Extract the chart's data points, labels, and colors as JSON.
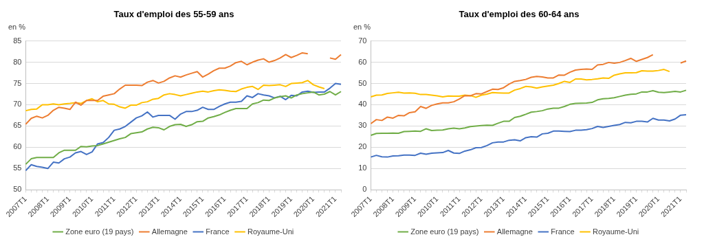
{
  "chart_data": [
    {
      "type": "line",
      "title": "Taux d'emploi des 55-59 ans",
      "ylabel": "en %",
      "categories": [
        "2007T1",
        null,
        null,
        null,
        "2008T1",
        null,
        null,
        null,
        "2009T1",
        null,
        null,
        null,
        "2010T1",
        null,
        null,
        null,
        "2011T1",
        null,
        null,
        null,
        "2012T1",
        null,
        null,
        null,
        "2013T1",
        null,
        null,
        null,
        "2014T1",
        null,
        null,
        null,
        "2015T1",
        null,
        null,
        null,
        "2016T1",
        null,
        null,
        null,
        "2017T1",
        null,
        null,
        null,
        "2018T1",
        null,
        null,
        null,
        "2019T1",
        null,
        null,
        null,
        "2020T1",
        null,
        null,
        null,
        "2021T1",
        null
      ],
      "series": [
        {
          "name": "Zone euro (19 pays)",
          "color": "#70ad47",
          "values": [
            56.0,
            57.3,
            57.6,
            57.6,
            57.6,
            57.6,
            58.7,
            59.3,
            59.3,
            59.3,
            60.2,
            60.1,
            60.3,
            60.4,
            60.8,
            61.2,
            61.6,
            62.0,
            62.3,
            63.2,
            63.4,
            63.6,
            64.3,
            64.7,
            64.6,
            64.1,
            64.9,
            65.3,
            65.4,
            64.9,
            65.3,
            66.0,
            66.1,
            66.9,
            67.2,
            67.6,
            68.2,
            68.7,
            69.1,
            69.1,
            69.1,
            70.2,
            70.5,
            71.1,
            71.0,
            71.6,
            71.9,
            72.1,
            71.6,
            72.3,
            72.6,
            72.8,
            73.0,
            72.3,
            72.5,
            73.1,
            72.3,
            73.1
          ]
        },
        {
          "name": "Allemagne",
          "color": "#ed7d31",
          "values": [
            65.4,
            66.8,
            67.3,
            66.9,
            67.5,
            68.7,
            69.4,
            69.2,
            68.9,
            70.6,
            69.9,
            71.0,
            71.0,
            71.0,
            72.0,
            72.3,
            72.6,
            73.7,
            74.6,
            74.6,
            74.6,
            74.5,
            75.3,
            75.7,
            75.1,
            75.5,
            76.3,
            76.8,
            76.5,
            77.0,
            77.4,
            77.8,
            76.5,
            77.2,
            78.0,
            78.6,
            78.6,
            79.1,
            79.9,
            80.2,
            79.4,
            80.0,
            80.5,
            80.8,
            80.0,
            80.4,
            81.0,
            81.8,
            81.1,
            81.6,
            82.2,
            82.0,
            null,
            null,
            null,
            81.0,
            80.7,
            81.8
          ]
        },
        {
          "name": "France",
          "color": "#4472c4",
          "values": [
            54.5,
            55.9,
            55.5,
            55.3,
            55.0,
            56.5,
            56.3,
            57.3,
            57.7,
            58.7,
            59.0,
            58.3,
            58.9,
            60.8,
            61.1,
            62.3,
            64.0,
            64.3,
            64.9,
            65.9,
            66.9,
            67.4,
            68.3,
            67.1,
            67.5,
            67.5,
            67.5,
            66.6,
            67.8,
            68.4,
            68.4,
            68.7,
            69.4,
            68.9,
            68.9,
            69.6,
            70.2,
            70.6,
            70.6,
            70.8,
            72.1,
            71.7,
            72.6,
            72.3,
            72.1,
            71.6,
            72.0,
            71.2,
            72.2,
            72.1,
            73.0,
            73.2,
            72.9,
            73.0,
            73.0,
            73.9,
            75.0,
            74.8
          ]
        },
        {
          "name": "Royaume-Uni",
          "color": "#ffc000",
          "values": [
            68.6,
            68.9,
            69.0,
            70.0,
            70.0,
            70.2,
            70.0,
            70.2,
            70.3,
            70.5,
            70.3,
            71.0,
            71.4,
            70.7,
            71.0,
            70.2,
            70.1,
            69.5,
            69.2,
            69.9,
            69.9,
            70.5,
            70.7,
            71.3,
            71.5,
            72.3,
            72.6,
            72.4,
            72.1,
            72.4,
            72.7,
            73.0,
            73.2,
            73.0,
            73.3,
            73.5,
            73.4,
            73.2,
            73.1,
            73.7,
            74.1,
            74.3,
            73.6,
            74.6,
            74.5,
            74.6,
            74.7,
            74.3,
            75.0,
            75.1,
            75.2,
            75.7,
            74.7,
            74.2,
            73.8,
            null,
            null,
            null
          ]
        }
      ],
      "ylim": [
        50,
        85
      ],
      "yticks": [
        50,
        55,
        60,
        65,
        70,
        75,
        80,
        85
      ],
      "grid": "y",
      "legend": "bottom",
      "marker": "none",
      "line_style": "solid"
    },
    {
      "type": "line",
      "title": "Taux d'emploi des 60-64 ans",
      "ylabel": "en %",
      "categories": [
        "2007T1",
        null,
        null,
        null,
        "2008T1",
        null,
        null,
        null,
        "2009T1",
        null,
        null,
        null,
        "2010T1",
        null,
        null,
        null,
        "2011T1",
        null,
        null,
        null,
        "2012T1",
        null,
        null,
        null,
        "2013T1",
        null,
        null,
        null,
        "2014T1",
        null,
        null,
        null,
        "2015T1",
        null,
        null,
        null,
        "2016T1",
        null,
        null,
        null,
        "2017T1",
        null,
        null,
        null,
        "2018T1",
        null,
        null,
        null,
        "2019T1",
        null,
        null,
        null,
        "2020T1",
        null,
        null,
        null,
        "2021T1",
        null
      ],
      "series": [
        {
          "name": "Zone euro (19 pays)",
          "color": "#70ad47",
          "values": [
            25.6,
            26.5,
            26.6,
            26.6,
            26.7,
            26.6,
            27.4,
            27.5,
            27.6,
            27.5,
            28.7,
            27.9,
            28.0,
            28.1,
            28.7,
            29.0,
            28.7,
            29.1,
            29.7,
            30.0,
            30.2,
            30.4,
            30.3,
            31.3,
            32.2,
            32.2,
            34.0,
            34.6,
            35.5,
            36.5,
            36.8,
            37.2,
            38.0,
            38.4,
            38.4,
            39.2,
            40.2,
            40.6,
            40.7,
            40.8,
            41.1,
            42.3,
            42.8,
            43.0,
            43.3,
            43.9,
            44.5,
            44.9,
            45.1,
            46.0,
            46.0,
            46.6,
            45.9,
            45.7,
            46.0,
            46.3,
            46.0,
            46.8
          ]
        },
        {
          "name": "Allemagne",
          "color": "#ed7d31",
          "values": [
            31.1,
            33.0,
            32.6,
            34.2,
            33.7,
            35.0,
            34.8,
            36.3,
            36.7,
            39.2,
            38.3,
            39.7,
            40.4,
            40.9,
            40.9,
            41.4,
            42.7,
            44.3,
            44.2,
            45.2,
            45.1,
            46.2,
            47.3,
            47.2,
            48.0,
            49.7,
            51.0,
            51.4,
            51.9,
            52.9,
            53.3,
            53.1,
            52.6,
            52.6,
            54.0,
            53.9,
            55.3,
            56.3,
            56.6,
            56.8,
            56.6,
            58.7,
            59.0,
            59.9,
            59.5,
            59.9,
            60.8,
            61.8,
            60.4,
            61.3,
            62.2,
            63.5,
            null,
            null,
            null,
            null,
            59.6,
            60.6
          ]
        },
        {
          "name": "France",
          "color": "#4472c4",
          "values": [
            15.4,
            16.2,
            15.5,
            15.4,
            15.9,
            16.0,
            16.3,
            16.3,
            16.2,
            17.2,
            16.7,
            17.2,
            17.4,
            17.5,
            18.5,
            17.3,
            17.1,
            18.2,
            18.8,
            19.8,
            19.9,
            20.8,
            22.1,
            22.5,
            22.5,
            23.3,
            23.5,
            23.0,
            24.5,
            25.0,
            24.8,
            26.3,
            26.6,
            27.6,
            27.6,
            27.5,
            27.4,
            28.0,
            28.0,
            28.3,
            28.8,
            29.8,
            29.3,
            29.8,
            30.3,
            30.7,
            31.7,
            31.5,
            32.2,
            32.2,
            31.9,
            33.6,
            32.8,
            32.8,
            32.4,
            33.3,
            35.1,
            35.3
          ]
        },
        {
          "name": "Royaume-Uni",
          "color": "#ffc000",
          "values": [
            43.7,
            44.5,
            44.6,
            45.3,
            45.6,
            45.9,
            45.5,
            45.6,
            45.4,
            44.8,
            44.8,
            44.5,
            44.2,
            43.7,
            44.1,
            44.0,
            44.0,
            44.5,
            44.3,
            43.5,
            44.5,
            45.0,
            45.7,
            45.6,
            45.5,
            45.5,
            46.9,
            47.6,
            48.6,
            48.4,
            47.8,
            48.4,
            48.8,
            49.2,
            50.0,
            51.0,
            50.5,
            52.1,
            52.1,
            51.7,
            51.9,
            52.2,
            52.6,
            52.4,
            53.9,
            54.5,
            55.0,
            55.0,
            55.1,
            56.0,
            55.8,
            55.8,
            56.1,
            56.6,
            55.6,
            null,
            null,
            null
          ]
        }
      ],
      "ylim": [
        0,
        70
      ],
      "yticks": [
        0,
        10,
        20,
        30,
        40,
        50,
        60,
        70
      ],
      "grid": "y",
      "legend": "bottom",
      "marker": "none",
      "line_style": "solid"
    }
  ]
}
